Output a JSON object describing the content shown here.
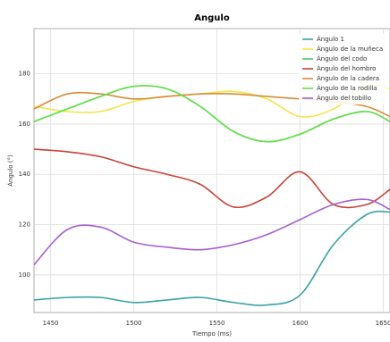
{
  "chart_data": {
    "type": "line",
    "title": "Angulo",
    "x_label": "Tiempo (ms)",
    "y_label": "Ángulo (°)",
    "x": [
      1440,
      1460,
      1480,
      1500,
      1520,
      1540,
      1560,
      1580,
      1600,
      1620,
      1640,
      1654
    ],
    "series": [
      {
        "name": "Ángulo 1",
        "color": "#3aa3a3",
        "values": [
          90,
          91,
          91,
          89,
          90,
          91,
          89,
          88,
          92,
          112,
          124,
          125
        ]
      },
      {
        "name": "Ángulo de la muñeca",
        "color": "#f2e64c",
        "values": [
          167,
          165,
          165,
          169,
          171,
          172,
          173,
          170,
          163,
          166,
          175,
          174
        ]
      },
      {
        "name": "Ángulo del codo",
        "color": "#52c46a",
        "values": [
          161,
          166,
          171,
          175,
          174,
          167,
          157,
          153,
          156,
          162,
          165,
          161
        ]
      },
      {
        "name": "Ángulo del hombro",
        "color": "#c8433a",
        "values": [
          150,
          149,
          147,
          143,
          140,
          136,
          127,
          131,
          141,
          128,
          128,
          134
        ]
      },
      {
        "name": "Ángulo de la cadera",
        "color": "#d98b3a",
        "values": [
          166,
          172,
          172,
          170,
          171,
          172,
          172,
          171,
          170,
          169,
          167,
          163
        ]
      },
      {
        "name": "Ángulo de la rodilla",
        "color": "#66e04c",
        "values": [
          161,
          166,
          171,
          175,
          174,
          167,
          157,
          153,
          156,
          162,
          165,
          161
        ]
      },
      {
        "name": "Ángulo del tobillo",
        "color": "#a55fd0",
        "values": [
          104,
          118,
          119,
          113,
          111,
          110,
          112,
          116,
          122,
          128,
          130,
          126
        ]
      }
    ],
    "xlim": [
      1440,
      1654
    ],
    "ylim": [
      85,
      198
    ],
    "xticks": [
      1450,
      1500,
      1550,
      1600,
      1650
    ],
    "yticks": [
      100,
      120,
      140,
      160,
      180
    ],
    "grid": true,
    "legend": "top-right"
  }
}
